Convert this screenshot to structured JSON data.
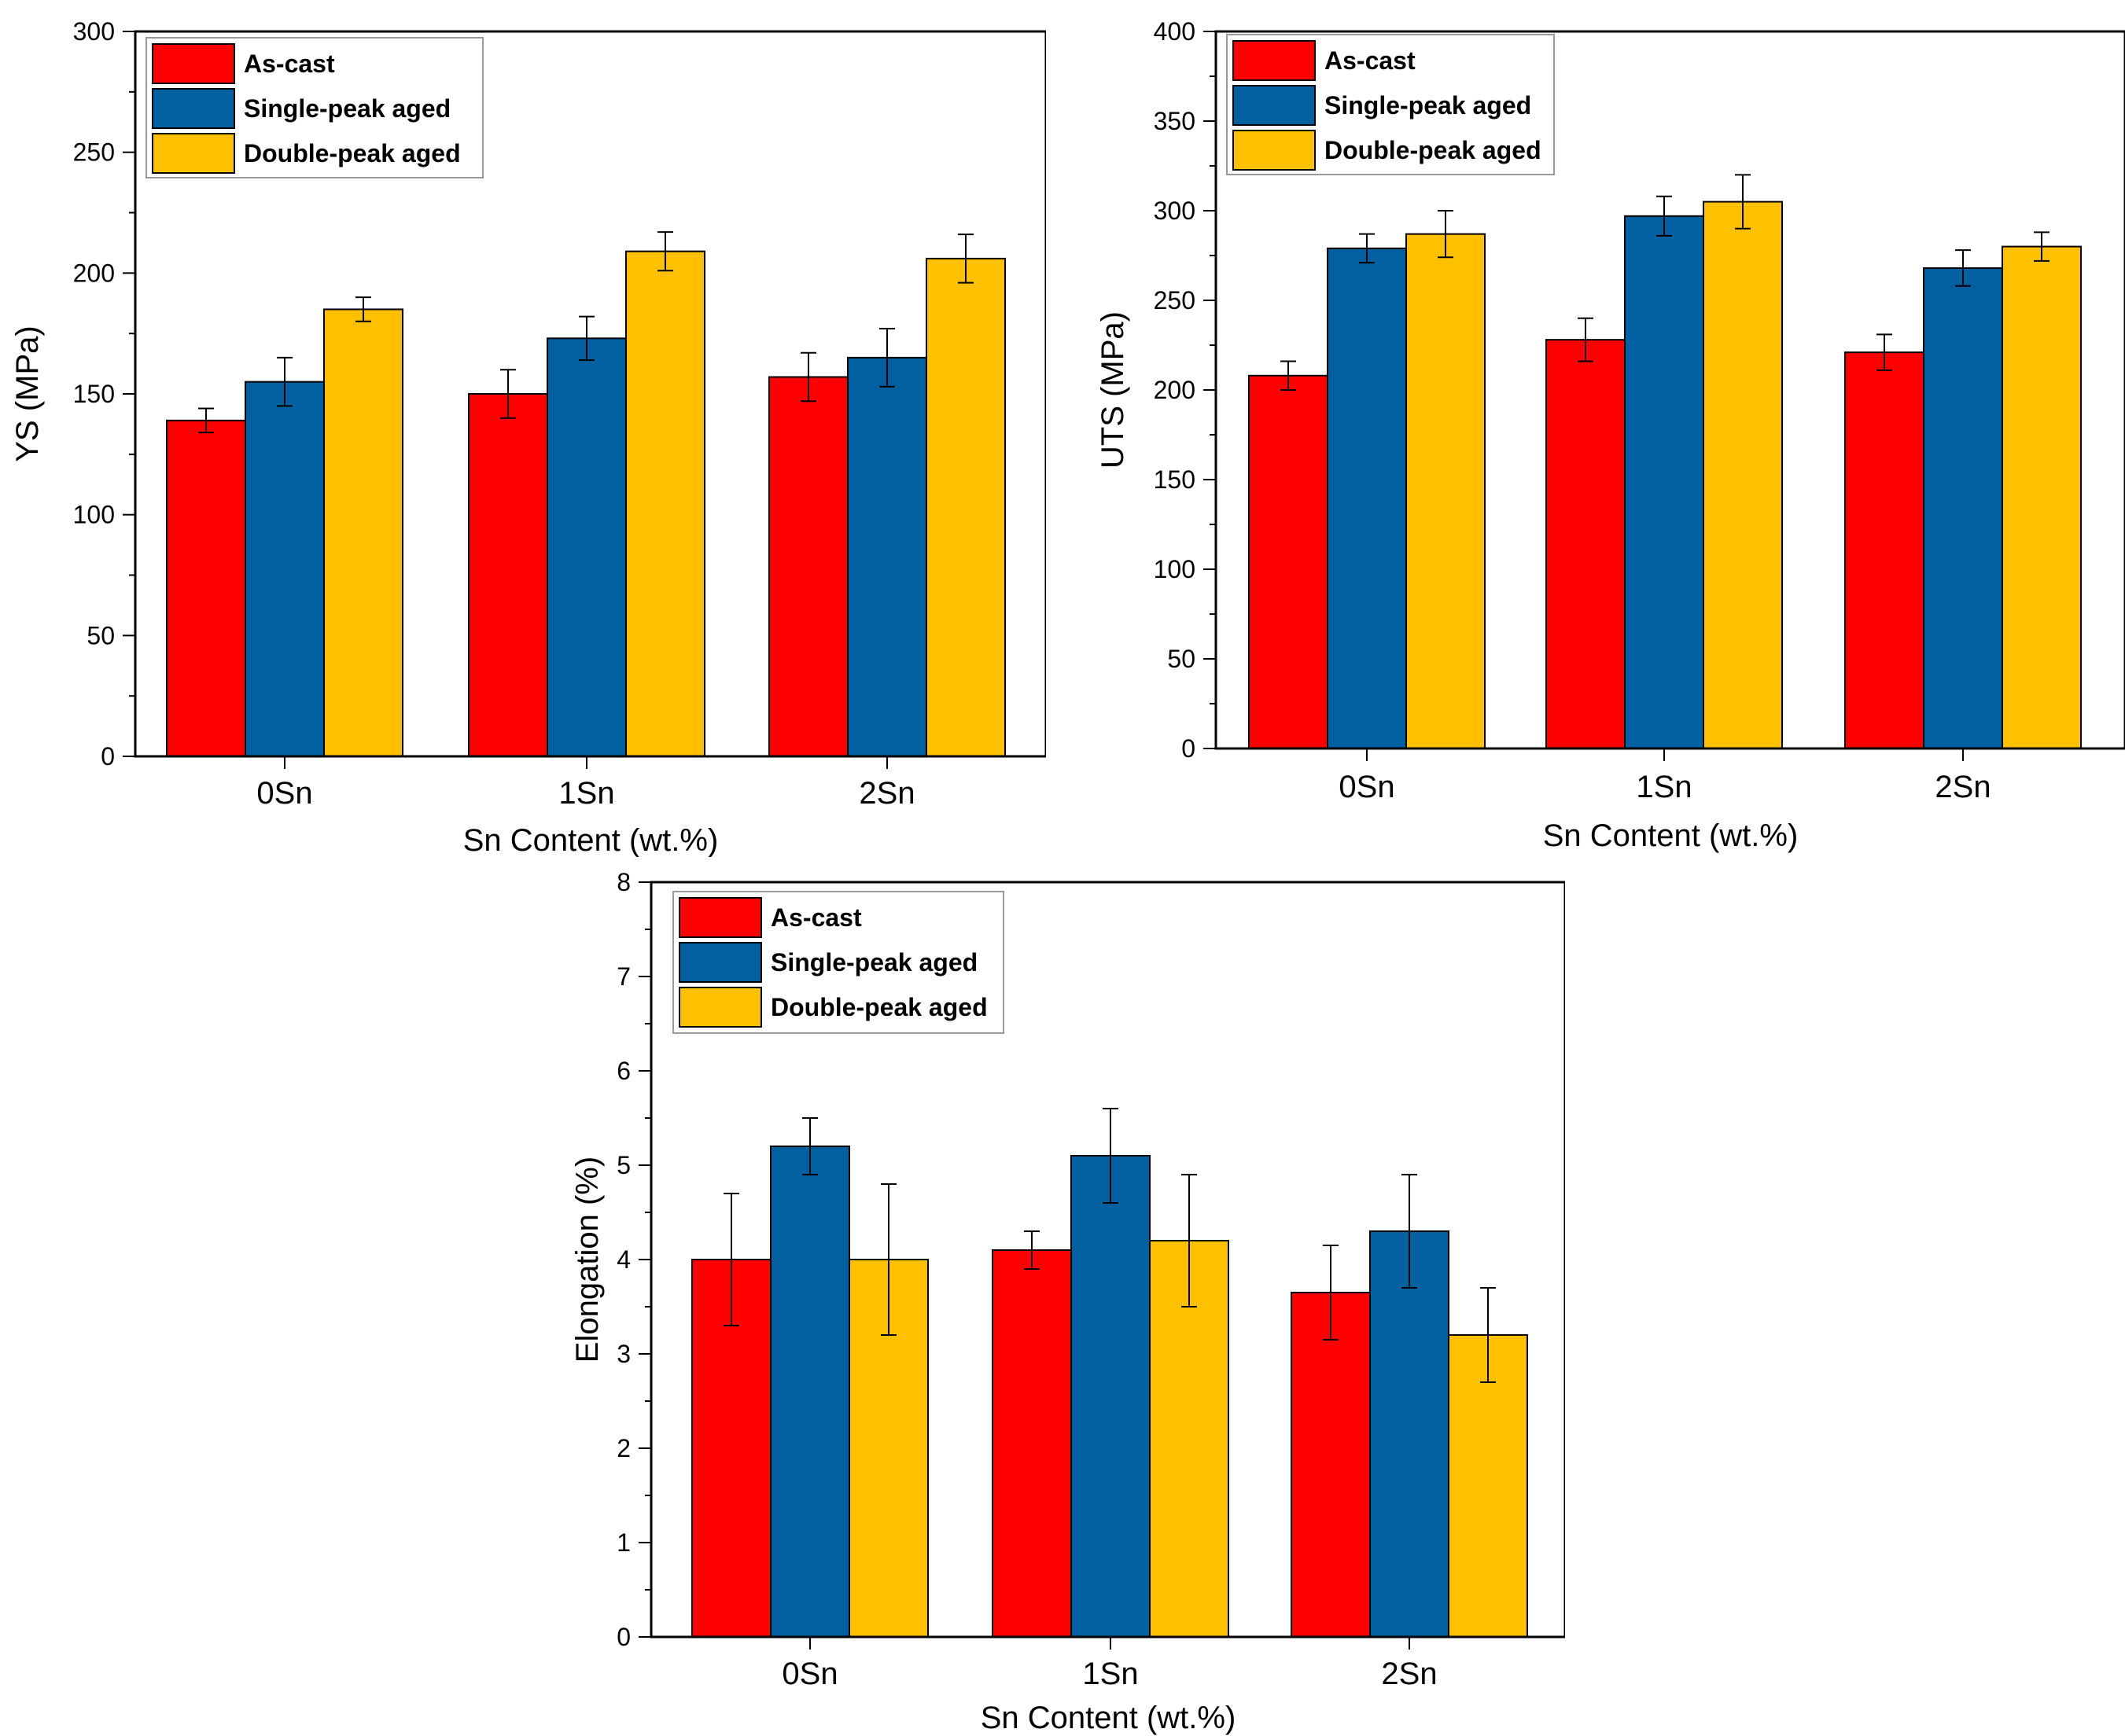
{
  "colors": {
    "as_cast": "#ff0000",
    "single_peak": "#0060a0",
    "double_peak": "#ffc000"
  },
  "chart_data": [
    {
      "id": "ys",
      "type": "bar",
      "categories": [
        "0Sn",
        "1Sn",
        "2Sn"
      ],
      "series": [
        {
          "name": "As-cast",
          "color_key": "as_cast",
          "values": [
            139,
            150,
            157
          ],
          "errors": [
            5,
            10,
            10
          ]
        },
        {
          "name": "Single-peak aged",
          "color_key": "single_peak",
          "values": [
            155,
            173,
            165
          ],
          "errors": [
            10,
            9,
            12
          ]
        },
        {
          "name": "Double-peak aged",
          "color_key": "double_peak",
          "values": [
            185,
            209,
            206
          ],
          "errors": [
            5,
            8,
            10
          ]
        }
      ],
      "title": "",
      "xlabel": "Sn Content (wt.%)",
      "ylabel": "YS (MPa)",
      "ylim": [
        0,
        300
      ],
      "yticks": [
        0,
        50,
        100,
        150,
        200,
        250,
        300
      ],
      "legend": "top-left",
      "grid": false
    },
    {
      "id": "uts",
      "type": "bar",
      "categories": [
        "0Sn",
        "1Sn",
        "2Sn"
      ],
      "series": [
        {
          "name": "As-cast",
          "color_key": "as_cast",
          "values": [
            208,
            228,
            221
          ],
          "errors": [
            8,
            12,
            10
          ]
        },
        {
          "name": "Single-peak aged",
          "color_key": "single_peak",
          "values": [
            279,
            297,
            268
          ],
          "errors": [
            8,
            11,
            10
          ]
        },
        {
          "name": "Double-peak aged",
          "color_key": "double_peak",
          "values": [
            287,
            305,
            280
          ],
          "errors": [
            13,
            15,
            8
          ]
        }
      ],
      "title": "",
      "xlabel": "Sn Content (wt.%)",
      "ylabel": "UTS (MPa)",
      "ylim": [
        0,
        400
      ],
      "yticks": [
        0,
        50,
        100,
        150,
        200,
        250,
        300,
        350,
        400
      ],
      "legend": "top-left",
      "grid": false
    },
    {
      "id": "elongation",
      "type": "bar",
      "categories": [
        "0Sn",
        "1Sn",
        "2Sn"
      ],
      "series": [
        {
          "name": "As-cast",
          "color_key": "as_cast",
          "values": [
            4.0,
            4.1,
            3.65
          ],
          "errors": [
            0.7,
            0.2,
            0.5
          ]
        },
        {
          "name": "Single-peak aged",
          "color_key": "single_peak",
          "values": [
            5.2,
            5.1,
            4.3
          ],
          "errors": [
            0.3,
            0.5,
            0.6
          ]
        },
        {
          "name": "Double-peak aged",
          "color_key": "double_peak",
          "values": [
            4.0,
            4.2,
            3.2
          ],
          "errors": [
            0.8,
            0.7,
            0.5
          ]
        }
      ],
      "title": "",
      "xlabel": "Sn Content (wt.%)",
      "ylabel": "Elongation (%)",
      "ylim": [
        0,
        8
      ],
      "yticks": [
        0,
        1,
        2,
        3,
        4,
        5,
        6,
        7,
        8
      ],
      "legend": "top-left",
      "grid": false
    }
  ]
}
